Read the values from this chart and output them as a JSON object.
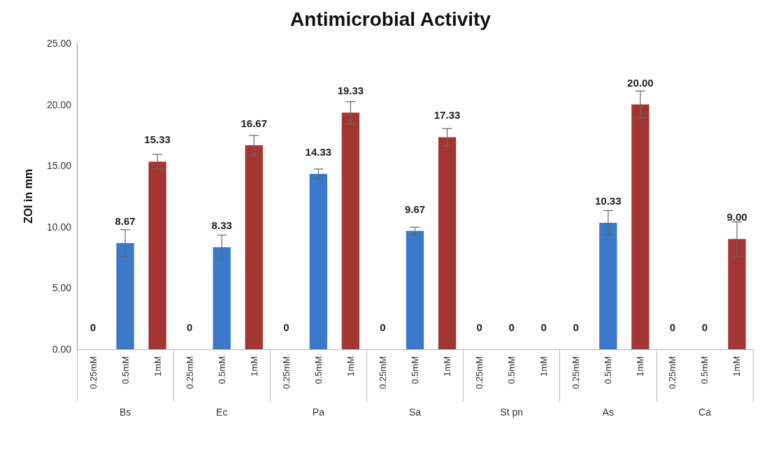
{
  "chart_data": {
    "type": "bar",
    "title": "Antimicrobial Activity",
    "ylabel": "ZOI in mm",
    "categories": [
      "0.25mM",
      "0.5mM",
      "1mM",
      "0.25mM",
      "0.5mM",
      "1mM",
      "0.25mM",
      "0.5mM",
      "1mM",
      "0.25mM",
      "0.5mM",
      "1mM",
      "0.25mM",
      "0.5mM",
      "1mM",
      "0.25mM",
      "0.5mM",
      "1mM",
      "0.25mM",
      "0.5mM",
      "1mM"
    ],
    "annotations": [
      "Bs",
      "Ec",
      "Pa",
      "Sa",
      "St pn",
      "As",
      "Ca"
    ],
    "values": [
      0,
      8.67,
      15.33,
      0,
      8.33,
      16.67,
      0,
      14.33,
      19.33,
      0,
      9.67,
      17.33,
      0,
      0,
      0,
      0,
      10.33,
      20,
      0,
      0,
      9
    ],
    "value_labels": [
      "0",
      "8.67",
      "15.33",
      "0",
      "8.33",
      "16.67",
      "0",
      "14.33",
      "19.33",
      "0",
      "9.67",
      "17.33",
      "0",
      "0",
      "0",
      "0",
      "10.33",
      "20.00",
      "0",
      "0",
      "9.00"
    ],
    "errors": [
      null,
      1.1,
      0.6,
      null,
      1.0,
      0.8,
      null,
      0.4,
      0.9,
      null,
      0.3,
      0.7,
      null,
      null,
      null,
      null,
      1.0,
      1.1,
      null,
      null,
      1.4
    ],
    "colors": [
      "#3a78c9",
      "#3a78c9",
      "#a33532",
      "#3a78c9",
      "#3a78c9",
      "#a33532",
      "#3a78c9",
      "#3a78c9",
      "#a33532",
      "#3a78c9",
      "#3a78c9",
      "#a33532",
      "#3a78c9",
      "#3a78c9",
      "#a33532",
      "#3a78c9",
      "#3a78c9",
      "#a33532",
      "#3a78c9",
      "#3a78c9",
      "#a33532"
    ],
    "ylim": [
      0,
      25
    ],
    "yticks": [
      {
        "value": 0,
        "label": "0.00"
      },
      {
        "value": 5,
        "label": "5.00"
      },
      {
        "value": 10,
        "label": "10.00"
      },
      {
        "value": 15,
        "label": "15.00"
      },
      {
        "value": 20,
        "label": "20.00"
      },
      {
        "value": 25,
        "label": "25.00"
      }
    ],
    "grid": false
  }
}
